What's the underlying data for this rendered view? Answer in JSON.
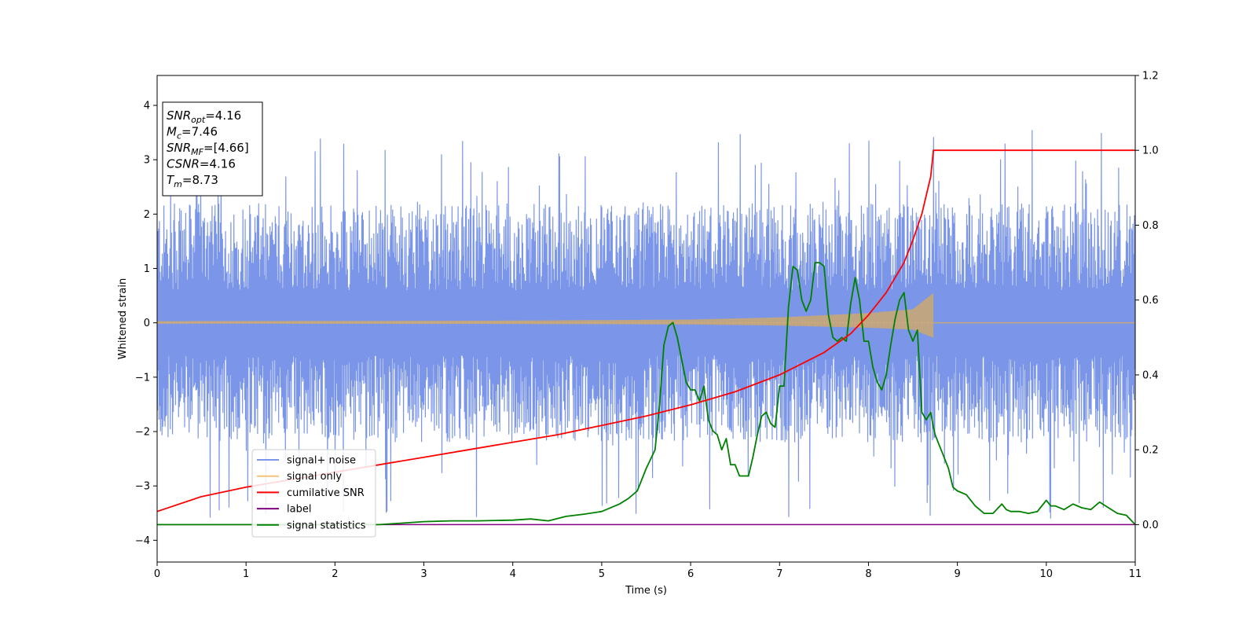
{
  "chart_data": {
    "type": "line",
    "xlabel": "Time (s)",
    "ylabel": "Whitened strain",
    "xlim": [
      0,
      11
    ],
    "ylim_left": [
      -4.4,
      4.55
    ],
    "ylim_right": [
      -0.1,
      1.2
    ],
    "x_ticks": [
      0,
      1,
      2,
      3,
      4,
      5,
      6,
      7,
      8,
      9,
      10,
      11
    ],
    "y_left_ticks": [
      -4,
      -3,
      -2,
      -1,
      0,
      1,
      2,
      3,
      4
    ],
    "y_right_ticks": [
      0.0,
      0.2,
      0.4,
      0.6,
      0.8,
      1.0,
      1.2
    ],
    "x_tick_labels": [
      "0",
      "1",
      "2",
      "3",
      "4",
      "5",
      "6",
      "7",
      "8",
      "9",
      "10",
      "11"
    ],
    "y_left_tick_labels": [
      "−4",
      "−3",
      "−2",
      "−1",
      "0",
      "1",
      "2",
      "3",
      "4"
    ],
    "y_right_tick_labels": [
      "0.0",
      "0.2",
      "0.4",
      "0.6",
      "0.8",
      "1.0",
      "1.2"
    ],
    "grid": false,
    "legend_position": "lower-left",
    "info_box": {
      "position": "upper-left",
      "lines": [
        {
          "base": "SNR",
          "sub": "opt",
          "rest": "=4.16"
        },
        {
          "base": "M",
          "sub": "c",
          "rest": "=7.46"
        },
        {
          "base": "SNR",
          "sub": "MF",
          "rest": "=[4.66]"
        },
        {
          "base": "CSNR",
          "sub": "",
          "rest": "=4.16"
        },
        {
          "base": "T",
          "sub": "m",
          "rest": "=8.73"
        }
      ]
    },
    "merger_time": 8.73,
    "series": [
      {
        "name": "signal+ noise",
        "axis": "left",
        "color": "#7b96e8",
        "noise_envelope": {
          "core_abs": 1.6,
          "peak_max": 3.8,
          "peak_min": -3.9
        }
      },
      {
        "name": "signal only",
        "axis": "left",
        "color": "#f5c27a",
        "envelope_amplitude": {
          "x": [
            0,
            4,
            6,
            7,
            8,
            8.5,
            8.73
          ],
          "amp": [
            0.03,
            0.04,
            0.06,
            0.1,
            0.18,
            0.25,
            0.55
          ]
        }
      },
      {
        "name": "cumilative SNR",
        "axis": "right",
        "color": "#ff0000",
        "x": [
          0,
          0.5,
          1,
          1.5,
          2,
          2.5,
          3,
          3.5,
          4,
          4.5,
          5,
          5.5,
          6,
          6.5,
          7,
          7.5,
          7.8,
          8,
          8.2,
          8.4,
          8.5,
          8.6,
          8.7,
          8.73,
          8.75,
          9,
          10,
          11
        ],
        "values": [
          0.035,
          0.075,
          0.1,
          0.12,
          0.14,
          0.16,
          0.18,
          0.2,
          0.22,
          0.24,
          0.265,
          0.29,
          0.32,
          0.355,
          0.4,
          0.46,
          0.51,
          0.56,
          0.62,
          0.7,
          0.76,
          0.83,
          0.93,
          1.0,
          1.0,
          1.0,
          1.0,
          1.0
        ]
      },
      {
        "name": "label",
        "axis": "right",
        "color": "#800080",
        "x": [
          0,
          11
        ],
        "values": [
          0.0,
          0.0
        ]
      },
      {
        "name": "signal statistics",
        "axis": "right",
        "color": "#008000",
        "x": [
          0,
          0.5,
          1,
          1.5,
          2,
          2.5,
          3,
          3.3,
          3.6,
          4,
          4.2,
          4.4,
          4.6,
          4.8,
          5,
          5.2,
          5.3,
          5.4,
          5.5,
          5.6,
          5.65,
          5.7,
          5.75,
          5.8,
          5.85,
          5.9,
          5.95,
          6.0,
          6.05,
          6.1,
          6.15,
          6.2,
          6.25,
          6.3,
          6.35,
          6.4,
          6.45,
          6.5,
          6.55,
          6.6,
          6.65,
          6.7,
          6.75,
          6.8,
          6.85,
          6.9,
          6.95,
          7.0,
          7.05,
          7.1,
          7.15,
          7.2,
          7.25,
          7.3,
          7.35,
          7.4,
          7.45,
          7.5,
          7.55,
          7.6,
          7.65,
          7.7,
          7.75,
          7.8,
          7.85,
          7.9,
          7.95,
          8.0,
          8.05,
          8.1,
          8.15,
          8.2,
          8.25,
          8.3,
          8.35,
          8.4,
          8.45,
          8.5,
          8.55,
          8.6,
          8.65,
          8.7,
          8.73,
          8.75,
          8.8,
          8.85,
          8.9,
          8.95,
          9.0,
          9.1,
          9.2,
          9.3,
          9.4,
          9.5,
          9.55,
          9.6,
          9.7,
          9.8,
          9.9,
          10.0,
          10.05,
          10.1,
          10.2,
          10.3,
          10.4,
          10.5,
          10.6,
          10.7,
          10.8,
          10.9,
          11.0
        ],
        "values": [
          0.0,
          0.0,
          0.0,
          0.0,
          0.0,
          0.0,
          0.008,
          0.01,
          0.01,
          0.012,
          0.015,
          0.01,
          0.022,
          0.028,
          0.035,
          0.055,
          0.07,
          0.09,
          0.15,
          0.2,
          0.32,
          0.48,
          0.53,
          0.54,
          0.5,
          0.44,
          0.38,
          0.36,
          0.36,
          0.33,
          0.37,
          0.28,
          0.25,
          0.24,
          0.2,
          0.23,
          0.16,
          0.16,
          0.13,
          0.13,
          0.13,
          0.18,
          0.24,
          0.29,
          0.3,
          0.27,
          0.26,
          0.37,
          0.37,
          0.58,
          0.69,
          0.68,
          0.6,
          0.57,
          0.6,
          0.7,
          0.7,
          0.69,
          0.56,
          0.5,
          0.49,
          0.5,
          0.49,
          0.59,
          0.66,
          0.6,
          0.49,
          0.49,
          0.42,
          0.38,
          0.36,
          0.4,
          0.48,
          0.55,
          0.6,
          0.62,
          0.52,
          0.49,
          0.52,
          0.3,
          0.28,
          0.3,
          0.26,
          0.24,
          0.21,
          0.18,
          0.15,
          0.1,
          0.09,
          0.08,
          0.05,
          0.03,
          0.03,
          0.055,
          0.04,
          0.035,
          0.035,
          0.03,
          0.035,
          0.065,
          0.05,
          0.05,
          0.04,
          0.055,
          0.045,
          0.04,
          0.06,
          0.045,
          0.03,
          0.025,
          0.0
        ]
      }
    ]
  }
}
